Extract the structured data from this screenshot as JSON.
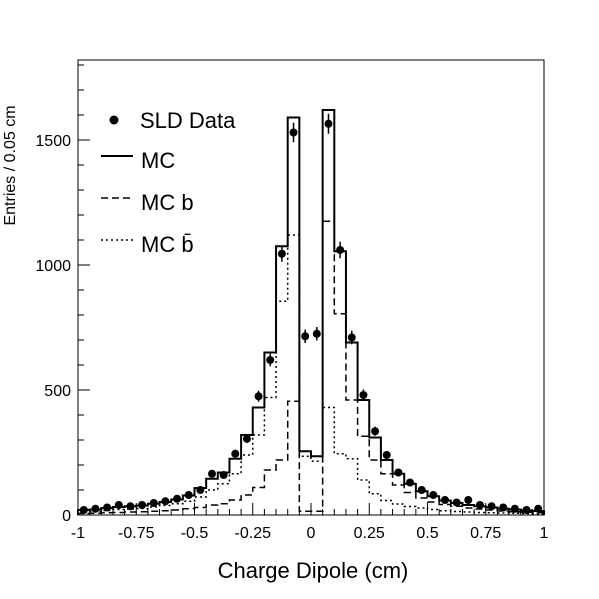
{
  "chart_data": {
    "type": "histogram",
    "title": "",
    "xlabel": "Charge Dipole  (cm)",
    "ylabel": "Entries / 0.05 cm",
    "xlim": [
      -1,
      1
    ],
    "ylim": [
      0,
      1820
    ],
    "x_ticks": [
      -1,
      -0.75,
      -0.5,
      -0.25,
      0,
      0.25,
      0.5,
      0.75,
      1
    ],
    "x_tick_labels": [
      "-1",
      "-0.75",
      "-0.5",
      "-0.25",
      "0",
      "0.25",
      "0.5",
      "0.75",
      "1"
    ],
    "y_ticks": [
      0,
      500,
      1000,
      1500
    ],
    "y_tick_labels": [
      "0",
      "500",
      "1000",
      "1500"
    ],
    "bin_edges": [
      -1.0,
      -0.95,
      -0.9,
      -0.85,
      -0.8,
      -0.75,
      -0.7,
      -0.65,
      -0.6,
      -0.55,
      -0.5,
      -0.45,
      -0.4,
      -0.35,
      -0.3,
      -0.25,
      -0.2,
      -0.15,
      -0.1,
      -0.05,
      0.0,
      0.05,
      0.1,
      0.15,
      0.2,
      0.25,
      0.3,
      0.35,
      0.4,
      0.45,
      0.5,
      0.55,
      0.6,
      0.65,
      0.7,
      0.75,
      0.8,
      0.85,
      0.9,
      0.95,
      1.0
    ],
    "legend_position": "top-left",
    "series": [
      {
        "name": "SLD Data",
        "style": "points",
        "color": "#000000",
        "x": [
          -0.975,
          -0.925,
          -0.875,
          -0.825,
          -0.775,
          -0.725,
          -0.675,
          -0.625,
          -0.575,
          -0.525,
          -0.475,
          -0.425,
          -0.375,
          -0.325,
          -0.275,
          -0.225,
          -0.175,
          -0.125,
          -0.075,
          -0.025,
          0.025,
          0.075,
          0.125,
          0.175,
          0.225,
          0.275,
          0.325,
          0.375,
          0.425,
          0.475,
          0.525,
          0.575,
          0.625,
          0.675,
          0.725,
          0.775,
          0.825,
          0.875,
          0.925,
          0.975
        ],
        "y": [
          20,
          25,
          30,
          40,
          35,
          40,
          48,
          55,
          65,
          80,
          100,
          165,
          160,
          245,
          305,
          475,
          620,
          1045,
          1530,
          715,
          725,
          1565,
          1060,
          710,
          480,
          335,
          240,
          170,
          130,
          100,
          80,
          60,
          50,
          60,
          40,
          35,
          30,
          25,
          20,
          25
        ],
        "errors": [
          5,
          5,
          6,
          6,
          6,
          6,
          7,
          7,
          8,
          9,
          10,
          13,
          13,
          16,
          17,
          22,
          25,
          32,
          39,
          27,
          27,
          40,
          33,
          27,
          22,
          18,
          16,
          13,
          11,
          10,
          9,
          8,
          7,
          8,
          6,
          6,
          6,
          5,
          5,
          5
        ]
      },
      {
        "name": "MC",
        "style": "solid",
        "color": "#000000",
        "values": [
          20,
          22,
          28,
          32,
          35,
          38,
          45,
          52,
          62,
          78,
          108,
          145,
          170,
          225,
          320,
          430,
          650,
          1075,
          1590,
          255,
          235,
          1620,
          1055,
          690,
          460,
          310,
          220,
          165,
          125,
          95,
          75,
          58,
          48,
          40,
          35,
          30,
          25,
          22,
          18,
          16
        ]
      },
      {
        "name": "MC b",
        "style": "dashed",
        "color": "#000000",
        "values": [
          6,
          7,
          9,
          10,
          12,
          13,
          15,
          17,
          20,
          25,
          30,
          40,
          45,
          60,
          80,
          110,
          180,
          220,
          455,
          15,
          15,
          1175,
          805,
          460,
          315,
          220,
          165,
          120,
          90,
          68,
          52,
          42,
          35,
          28,
          24,
          20,
          16,
          13,
          11,
          9
        ]
      },
      {
        "name": "MC b̄",
        "style": "dotted",
        "color": "#000000",
        "values": [
          12,
          14,
          18,
          22,
          24,
          26,
          32,
          38,
          45,
          55,
          72,
          100,
          125,
          165,
          240,
          320,
          470,
          855,
          1120,
          235,
          215,
          430,
          245,
          225,
          140,
          85,
          58,
          44,
          34,
          28,
          22,
          17,
          14,
          12,
          10,
          9,
          8,
          7,
          6,
          5
        ]
      }
    ]
  }
}
